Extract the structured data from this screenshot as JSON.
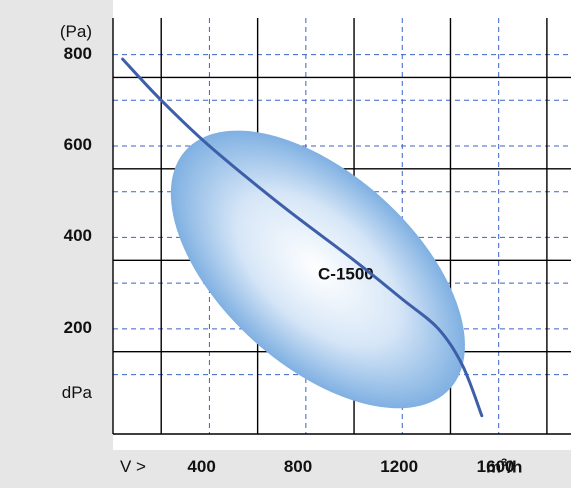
{
  "chart_data": {
    "type": "line",
    "ylabel_top": "(Pa)",
    "ylabel_bottom": "dPa",
    "x_prefix": "V >",
    "x_unit": {
      "base": "m",
      "exp": "3",
      "suffix": "/h"
    },
    "xlim": [
      0,
      1900
    ],
    "ylim": [
      -30,
      880
    ],
    "x_ticks": [
      400,
      800,
      1200,
      1600
    ],
    "y_ticks": [
      200,
      400,
      600,
      800
    ],
    "series": [
      {
        "values": [
          {
            "x": 40,
            "y": 790
          },
          {
            "x": 200,
            "y": 700
          },
          {
            "x": 400,
            "y": 600
          },
          {
            "x": 700,
            "y": 470
          },
          {
            "x": 1000,
            "y": 350
          },
          {
            "x": 1200,
            "y": 265
          },
          {
            "x": 1350,
            "y": 200
          },
          {
            "x": 1450,
            "y": 120
          },
          {
            "x": 1530,
            "y": 10
          }
        ]
      }
    ],
    "region": {
      "label": "C-1500",
      "center": {
        "x": 850,
        "y": 330
      },
      "angle_deg": 42
    },
    "colors": {
      "curve": "#3d5ea8",
      "grid_major": "#000000",
      "grid_minor": "#3a62c8",
      "region_fill": "#9ec3ea"
    }
  }
}
